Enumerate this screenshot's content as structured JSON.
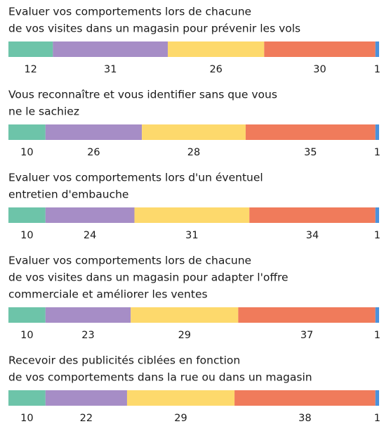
{
  "chart_data": {
    "type": "stacked-bar-horizontal",
    "categories": [
      [
        "Evaluer vos comportements lors de chacune",
        "de vos visites dans un magasin pour prévenir les vols"
      ],
      [
        "Vous reconnaître et vous identifier sans que vous",
        "ne le sachiez"
      ],
      [
        "Evaluer vos comportements lors d'un éventuel",
        "entretien d'embauche"
      ],
      [
        "Evaluer vos comportements lors de chacune",
        "de vos visites dans un magasin pour adapter l'offre",
        "commerciale et améliorer les ventes"
      ],
      [
        "Recevoir des publicités ciblées en fonction",
        "de vos comportements dans la rue ou dans un magasin"
      ]
    ],
    "series": [
      {
        "color": "#6dc4a9",
        "values": [
          12,
          10,
          10,
          10,
          10
        ]
      },
      {
        "color": "#a68dc6",
        "values": [
          31,
          26,
          24,
          23,
          22
        ]
      },
      {
        "color": "#fdd96c",
        "values": [
          26,
          28,
          31,
          29,
          29
        ]
      },
      {
        "color": "#f07b5b",
        "values": [
          30,
          35,
          34,
          37,
          38
        ]
      },
      {
        "color": "#4a92dc",
        "values": [
          1,
          1,
          1,
          1,
          1
        ]
      }
    ],
    "xlim": [
      0,
      100
    ]
  }
}
